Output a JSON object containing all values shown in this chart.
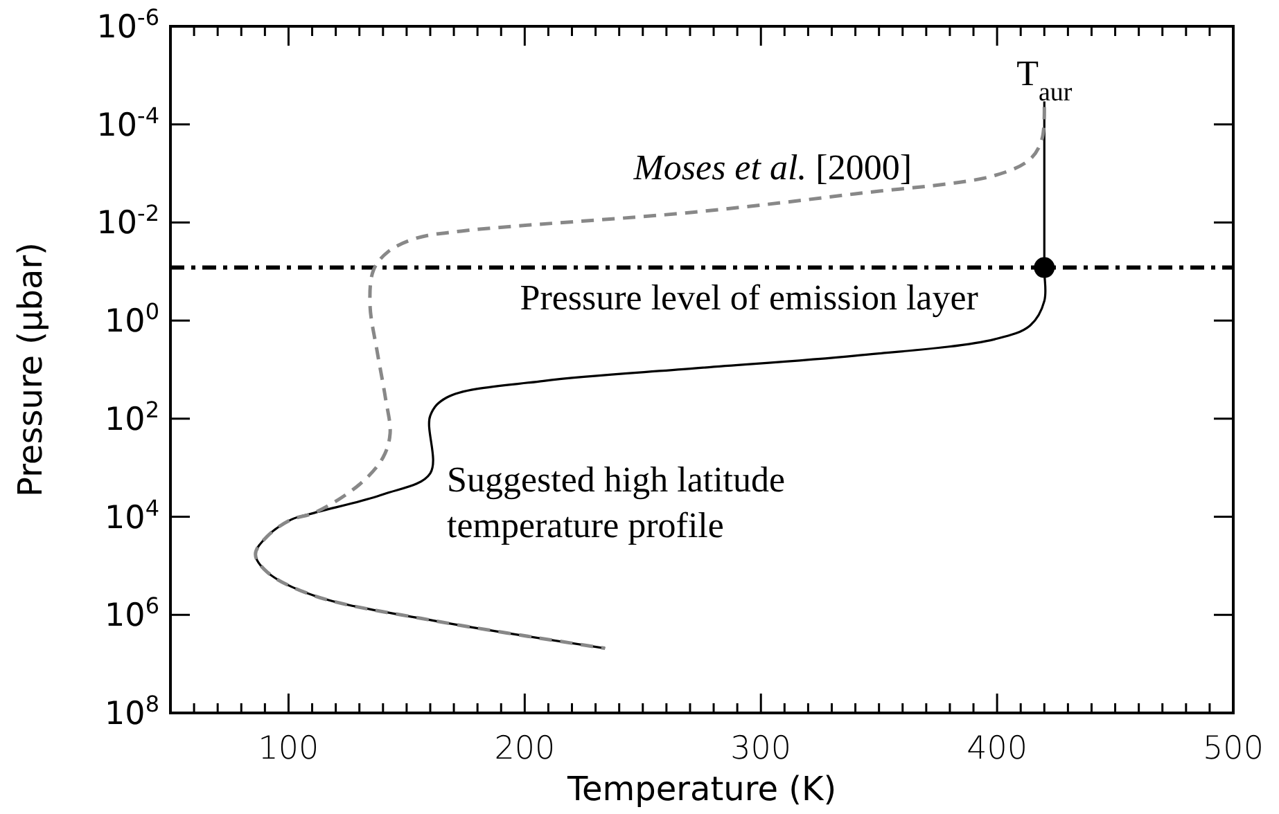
{
  "chart_data": {
    "type": "line",
    "xlabel": "Temperature (K)",
    "ylabel": "Pressure (μbar)",
    "xlim": [
      50,
      500
    ],
    "ylim": [
      100000000.0,
      1e-06
    ],
    "log": "y",
    "grid": false,
    "xticks": [
      {
        "value": 60,
        "label": null
      },
      {
        "value": 70,
        "label": null
      },
      {
        "value": 80,
        "label": null
      },
      {
        "value": 90,
        "label": null
      },
      100,
      {
        "value": 110,
        "label": null
      },
      {
        "value": 120,
        "label": null
      },
      {
        "value": 130,
        "label": null
      },
      {
        "value": 140,
        "label": null
      },
      {
        "value": 150,
        "label": null
      },
      {
        "value": 160,
        "label": null
      },
      {
        "value": 170,
        "label": null
      },
      {
        "value": 180,
        "label": null
      },
      {
        "value": 190,
        "label": null
      },
      200,
      {
        "value": 210,
        "label": null
      },
      {
        "value": 220,
        "label": null
      },
      {
        "value": 230,
        "label": null
      },
      {
        "value": 240,
        "label": null
      },
      {
        "value": 250,
        "label": null
      },
      {
        "value": 260,
        "label": null
      },
      {
        "value": 270,
        "label": null
      },
      {
        "value": 280,
        "label": null
      },
      {
        "value": 290,
        "label": null
      },
      300,
      {
        "value": 310,
        "label": null
      },
      {
        "value": 320,
        "label": null
      },
      {
        "value": 330,
        "label": null
      },
      {
        "value": 340,
        "label": null
      },
      {
        "value": 350,
        "label": null
      },
      {
        "value": 360,
        "label": null
      },
      {
        "value": 370,
        "label": null
      },
      {
        "value": 380,
        "label": null
      },
      {
        "value": 390,
        "label": null
      },
      400,
      {
        "value": 410,
        "label": null
      },
      {
        "value": 420,
        "label": null
      },
      {
        "value": 430,
        "label": null
      },
      {
        "value": 440,
        "label": null
      },
      {
        "value": 450,
        "label": null
      },
      {
        "value": 460,
        "label": null
      },
      {
        "value": 470,
        "label": null
      },
      {
        "value": 480,
        "label": null
      },
      {
        "value": 490,
        "label": null
      },
      500
    ],
    "yticks": [
      {
        "value": 1e-06,
        "label": "10$^{-6}$"
      },
      {
        "value": 0.0001,
        "label": "10$^{-4}$"
      },
      {
        "value": 0.01,
        "label": "10$^{-2}$"
      },
      {
        "value": 1,
        "label": "10$^{0}$"
      },
      {
        "value": 100.0,
        "label": "10$^{2}$"
      },
      {
        "value": 10000.0,
        "label": "10$^{4}$"
      },
      {
        "value": 1000000.0,
        "label": "10$^{6}$"
      },
      {
        "value": 100000000.0,
        "label": "10$^{8}$"
      }
    ],
    "series": [
      {
        "name": "Suggested high latitude temperature profile",
        "color": "#000000",
        "line_style": "solid",
        "marker": "none",
        "x": [
          420,
          420,
          420,
          414,
          399,
          340,
          271,
          208,
          167,
          160,
          160,
          140,
          111,
          101,
          91,
          86,
          91,
          111,
          161,
          234
        ],
        "values": [
          3.4e-05,
          0.083,
          0.4,
          1.26,
          2.4,
          5.2,
          9.5,
          17,
          37,
          87,
          1300,
          3500,
          8300,
          11500,
          25000,
          58000,
          135000,
          410000,
          1300000,
          4800000
        ]
      },
      {
        "name": "Moses et al. [2000]",
        "color": "#888888",
        "line_style": "dashed",
        "marker": "none",
        "x": [
          420,
          419,
          414,
          399,
          340,
          271,
          173,
          154,
          142,
          136,
          134.5,
          137.5,
          141,
          143,
          140,
          130,
          111,
          101,
          91,
          86,
          91,
          111,
          161,
          234
        ],
        "values": [
          4.4e-05,
          0.0002,
          0.00051,
          0.0011,
          0.0026,
          0.0062,
          0.015,
          0.021,
          0.04,
          0.093,
          0.48,
          4.2,
          37,
          200,
          620,
          2200,
          8300,
          11500,
          25000,
          58000,
          135000,
          410000,
          1300000,
          4800000
        ]
      },
      {
        "type": "scatter",
        "color": "#000000",
        "marker": "circle",
        "x": [
          420
        ],
        "values": [
          0.083
        ]
      }
    ],
    "ref_lines": [
      {
        "axis": "y",
        "value": 0.083,
        "label": "Pressure level of emission layer",
        "color": "#000000",
        "line_style": "dashdot"
      }
    ],
    "annotations": [
      {
        "text": "T$_{aur}$",
        "x": 420,
        "y": 3.4e-05
      }
    ]
  }
}
